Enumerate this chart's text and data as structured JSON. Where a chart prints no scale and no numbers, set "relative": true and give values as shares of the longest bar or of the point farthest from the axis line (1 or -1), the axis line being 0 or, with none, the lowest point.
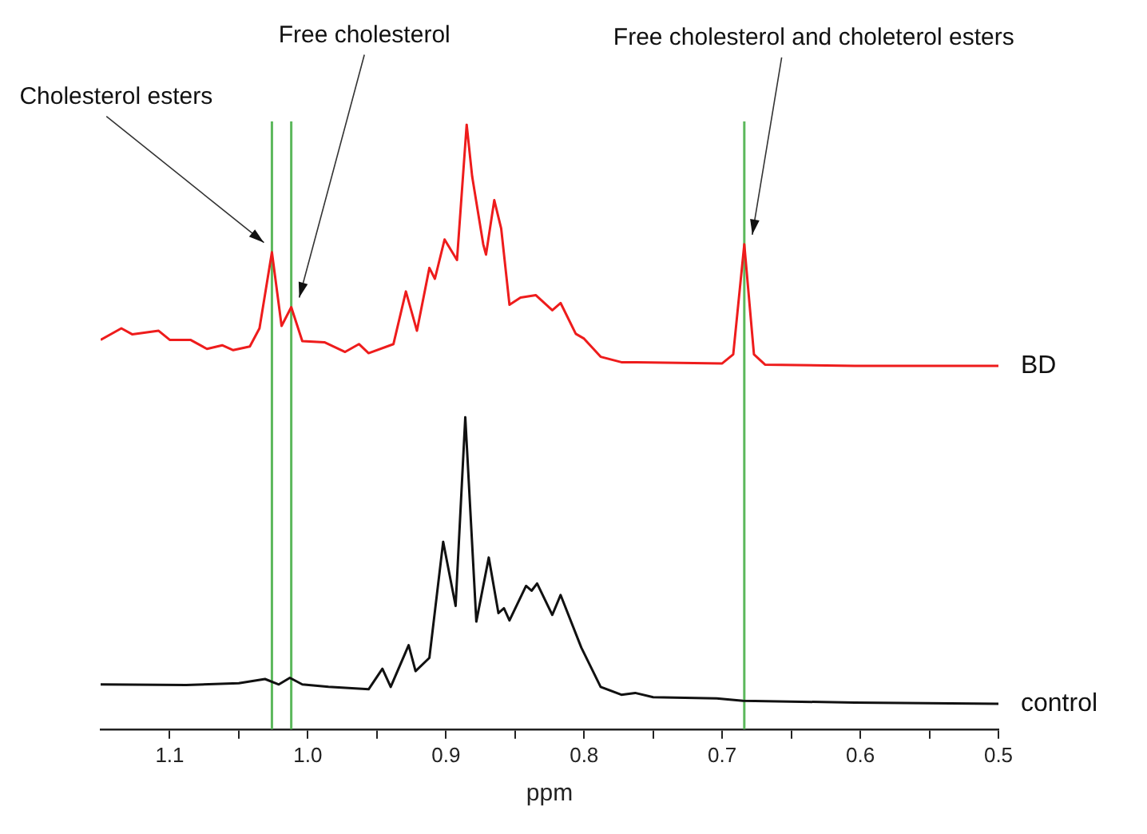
{
  "chart_data": {
    "type": "line",
    "xlabel": "ppm",
    "relative": true,
    "grid": false,
    "legend": false,
    "marker": "none",
    "line_style": "solid",
    "xlim": [
      1.15,
      0.5
    ],
    "xticks": [
      1.1,
      {
        "value": 1.05,
        "label": null
      },
      {
        "value": 1,
        "label": "1.0"
      },
      {
        "value": 0.95,
        "label": null
      },
      0.9,
      {
        "value": 0.85,
        "label": null
      },
      0.8,
      {
        "value": 0.75,
        "label": null
      },
      0.7,
      {
        "value": 0.65,
        "label": null
      },
      0.6,
      {
        "value": 0.55,
        "label": null
      },
      0.5
    ],
    "series": [
      {
        "name": "BD",
        "color": "#ee1c1c",
        "x": [
          1.15,
          1.135,
          1.127,
          1.108,
          1.1,
          1.085,
          1.073,
          1.062,
          1.054,
          1.042,
          1.035,
          1.026,
          1.019,
          1.012,
          1.004,
          0.988,
          0.973,
          0.963,
          0.956,
          0.938,
          0.929,
          0.921,
          0.912,
          0.908,
          0.901,
          0.892,
          0.885,
          0.881,
          0.873,
          0.871,
          0.865,
          0.86,
          0.854,
          0.846,
          0.835,
          0.823,
          0.817,
          0.806,
          0.8,
          0.788,
          0.773,
          0.762,
          0.7,
          0.692,
          0.684,
          0.677,
          0.669,
          0.604,
          0.5
        ],
        "values": [
          0.644,
          0.663,
          0.653,
          0.659,
          0.644,
          0.644,
          0.629,
          0.635,
          0.627,
          0.633,
          0.663,
          0.789,
          0.667,
          0.698,
          0.642,
          0.64,
          0.624,
          0.637,
          0.622,
          0.637,
          0.724,
          0.659,
          0.763,
          0.745,
          0.81,
          0.776,
          1.0,
          0.914,
          0.802,
          0.785,
          0.875,
          0.828,
          0.702,
          0.714,
          0.718,
          0.693,
          0.705,
          0.654,
          0.646,
          0.616,
          0.607,
          0.607,
          0.605,
          0.62,
          0.802,
          0.62,
          0.603,
          0.601,
          0.601
        ]
      },
      {
        "name": "control",
        "color": "#111111",
        "x": [
          1.15,
          1.088,
          1.05,
          1.031,
          1.021,
          1.013,
          1.004,
          0.985,
          0.956,
          0.946,
          0.94,
          0.927,
          0.922,
          0.912,
          0.902,
          0.893,
          0.886,
          0.878,
          0.869,
          0.862,
          0.858,
          0.854,
          0.842,
          0.838,
          0.834,
          0.823,
          0.817,
          0.802,
          0.788,
          0.773,
          0.763,
          0.75,
          0.704,
          0.685,
          0.604,
          0.5
        ],
        "values": [
          0.074,
          0.073,
          0.076,
          0.083,
          0.074,
          0.085,
          0.074,
          0.07,
          0.066,
          0.1,
          0.07,
          0.139,
          0.096,
          0.118,
          0.31,
          0.204,
          0.516,
          0.178,
          0.284,
          0.192,
          0.2,
          0.18,
          0.237,
          0.229,
          0.241,
          0.189,
          0.222,
          0.135,
          0.07,
          0.057,
          0.06,
          0.053,
          0.051,
          0.047,
          0.044,
          0.042
        ]
      }
    ],
    "ref_lines": [
      {
        "axis": "x",
        "value": 1.026,
        "color": "#5cb85c"
      },
      {
        "axis": "x",
        "value": 1.012,
        "color": "#5cb85c"
      },
      {
        "axis": "x",
        "value": 0.684,
        "color": "#5cb85c"
      }
    ],
    "annotations": [
      {
        "text": "Cholesterol esters",
        "x": 1.026,
        "y": 0.789
      },
      {
        "text": "Free cholesterol",
        "x": 1.012,
        "y": 0.698
      },
      {
        "text": "Free cholesterol and choleterol esters",
        "x": 0.684,
        "y": 0.802
      }
    ]
  }
}
